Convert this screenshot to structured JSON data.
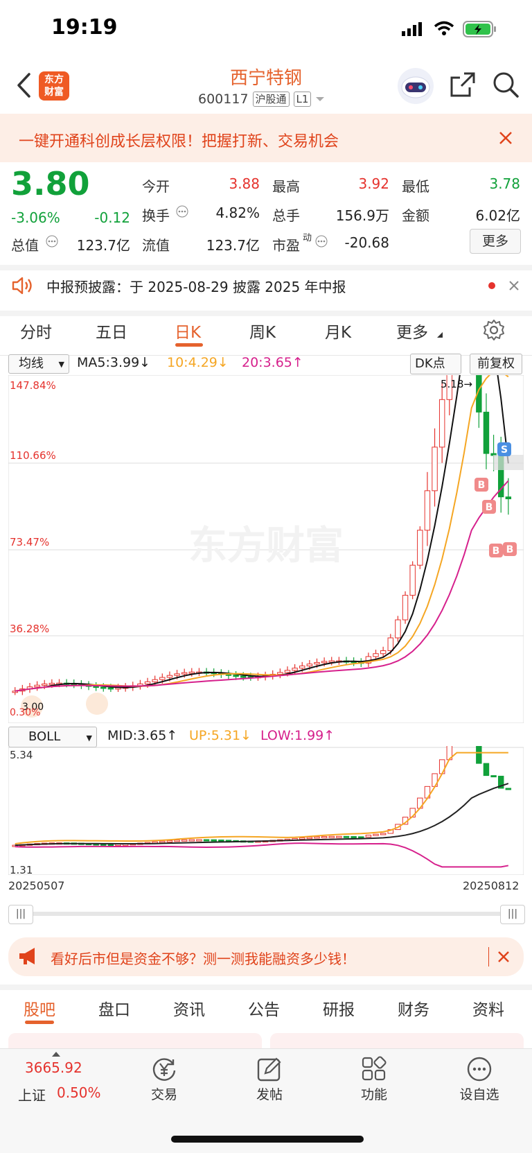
{
  "status_bar": {
    "time": "19:19"
  },
  "header": {
    "logo_line1": "东方",
    "logo_line2": "财富",
    "stock_name": "西宁特钢",
    "stock_code": "600117",
    "tag_connect": "沪股通",
    "tag_level": "L1"
  },
  "promo": {
    "text": "一键开通科创成长层权限！把握打新、交易机会"
  },
  "quote": {
    "price": "3.80",
    "change_pct": "-3.06%",
    "change": "-0.12",
    "open_label": "今开",
    "open": "3.88",
    "high_label": "最高",
    "high": "3.92",
    "low_label": "最低",
    "low": "3.78",
    "turnover_label": "换手",
    "turnover": "4.82%",
    "volume_label": "总手",
    "volume": "156.9万",
    "amount_label": "金额",
    "amount": "6.02亿",
    "mktcap_label": "总值",
    "mktcap": "123.7亿",
    "float_label": "流值",
    "float": "123.7亿",
    "pe_label": "市盈",
    "pe_sup": "动",
    "pe": "-20.68",
    "more_label": "更多"
  },
  "notice": {
    "text": "中报预披露：于 2025-08-29 披露 2025 年中报"
  },
  "period_tabs": [
    "分时",
    "五日",
    "日K",
    "周K",
    "月K",
    "更多"
  ],
  "active_period": "日K",
  "ma_row": {
    "select": "均线",
    "ma5": "MA5:3.99↓",
    "ma10": "10:4.29↓",
    "ma20": "20:3.65↑",
    "dk_label": "DK点",
    "adjust_label": "前复权"
  },
  "kchart": {
    "axis_labels": [
      "147.84%",
      "110.66%",
      "73.47%",
      "36.28%"
    ],
    "peak_label": "5.18→",
    "left_label": "3.00",
    "left_pct": "0.30%",
    "watermark": "东方财富",
    "marker_s": "S",
    "marker_b": "B"
  },
  "boll_row": {
    "select": "BOLL",
    "mid": "MID:3.65↑",
    "up": "UP:5.31↓",
    "low": "LOW:1.99↑"
  },
  "boll_chart": {
    "top_label": "5.34",
    "bottom_label": "1.31"
  },
  "dates": {
    "start": "20250507",
    "end": "20250812"
  },
  "ad": {
    "text": "看好后市但是资金不够？测一测我能融资多少钱！"
  },
  "section_tabs": [
    "股吧",
    "盘口",
    "资讯",
    "公告",
    "研报",
    "财务",
    "资料"
  ],
  "active_section": "股吧",
  "bottom_nav": {
    "index_value": "3665.92",
    "index_name": "上证",
    "index_change": "0.50%",
    "trade": "交易",
    "post": "发帖",
    "func": "功能",
    "watchlist": "设自选"
  },
  "colors": {
    "up": "#e5322d",
    "down": "#11a13a",
    "accent": "#e5622d",
    "ma10": "#f5a623",
    "ma20": "#d6208c"
  }
}
